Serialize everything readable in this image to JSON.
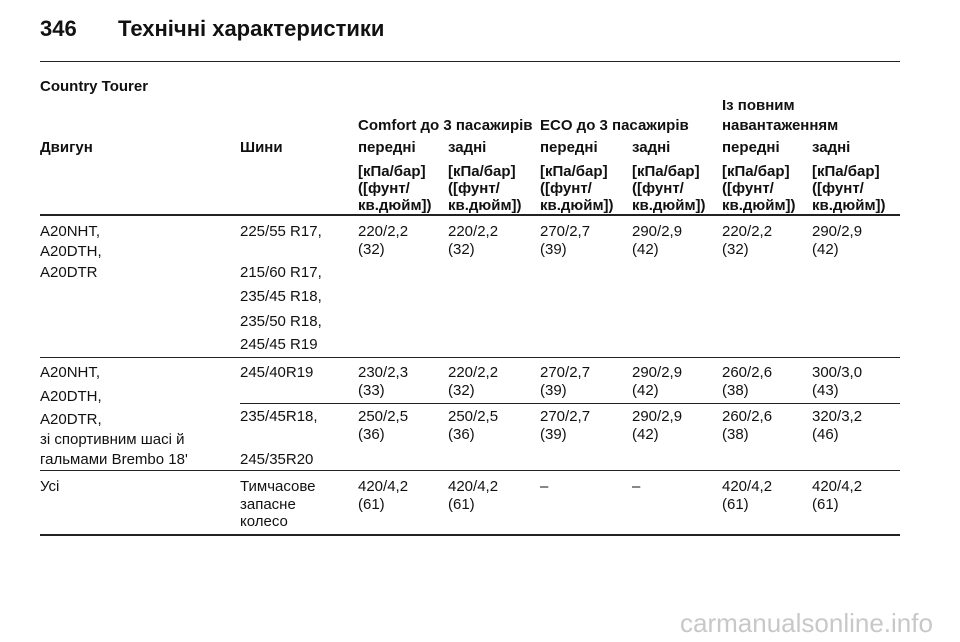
{
  "header": {
    "page_number": "346",
    "title": "Технічні характеристики"
  },
  "section_title": "Country Tourer",
  "table": {
    "group_headers": [
      [
        "Comfort до 3 пасажирів"
      ],
      [
        "ECO до 3 пасажирів"
      ],
      [
        "Із повним",
        "навантаженням"
      ]
    ],
    "columns": [
      "Двигун",
      "Шини",
      "передні",
      "задні",
      "передні",
      "задні",
      "передні",
      "задні"
    ],
    "units": [
      [
        "[кПа/бар]",
        "([фунт/",
        "кв.дюйм])"
      ],
      [
        "[кПа/бар]",
        "([фунт/",
        "кв.дюйм])"
      ],
      [
        "[кПа/бар]",
        "([фунт/",
        "кв.дюйм])"
      ],
      [
        "[кПа/бар]",
        "([фунт/",
        "кв.дюйм])"
      ],
      [
        "[кПа/бар]",
        "([фунт/",
        "кв.дюйм])"
      ],
      [
        "[кПа/бар]",
        "([фунт/",
        "кв.дюйм])"
      ]
    ],
    "rows": [
      {
        "engine": [
          "A20NHT,",
          "A20DTH,",
          "A20DTR"
        ],
        "subrows": [
          {
            "tyres": [
              "225/55 R17,",
              "215/60 R17,",
              "235/45 R18,",
              "235/50 R18,",
              "245/45 R19"
            ],
            "values": [
              [
                "220/2,2",
                "(32)"
              ],
              [
                "220/2,2",
                "(32)"
              ],
              [
                "270/2,7",
                "(39)"
              ],
              [
                "290/2,9",
                "(42)"
              ],
              [
                "220/2,2",
                "(32)"
              ],
              [
                "290/2,9",
                "(42)"
              ]
            ]
          }
        ]
      },
      {
        "engine": [
          "A20NHT,",
          "A20DTH,",
          "A20DTR,",
          "зі спортивним шасі й",
          "гальмами Brembo 18'"
        ],
        "subrows": [
          {
            "tyres": [
              "245/40R19"
            ],
            "values": [
              [
                "230/2,3",
                "(33)"
              ],
              [
                "220/2,2",
                "(32)"
              ],
              [
                "270/2,7",
                "(39)"
              ],
              [
                "290/2,9",
                "(42)"
              ],
              [
                "260/2,6",
                "(38)"
              ],
              [
                "300/3,0",
                "(43)"
              ]
            ]
          },
          {
            "tyres": [
              "235/45R18,",
              "245/35R20"
            ],
            "values": [
              [
                "250/2,5",
                "(36)"
              ],
              [
                "250/2,5",
                "(36)"
              ],
              [
                "270/2,7",
                "(39)"
              ],
              [
                "290/2,9",
                "(42)"
              ],
              [
                "260/2,6",
                "(38)"
              ],
              [
                "320/3,2",
                "(46)"
              ]
            ]
          }
        ]
      },
      {
        "engine": [
          "Усі"
        ],
        "subrows": [
          {
            "tyres": [
              "Тимчасове",
              "запасне",
              "колесо"
            ],
            "values": [
              [
                "420/4,2",
                "(61)"
              ],
              [
                "420/4,2",
                "(61)"
              ],
              [
                "–"
              ],
              [
                "–"
              ],
              [
                "420/4,2",
                "(61)"
              ],
              [
                "420/4,2",
                "(61)"
              ]
            ]
          }
        ]
      }
    ]
  },
  "watermark": "carmanualsonline.info"
}
